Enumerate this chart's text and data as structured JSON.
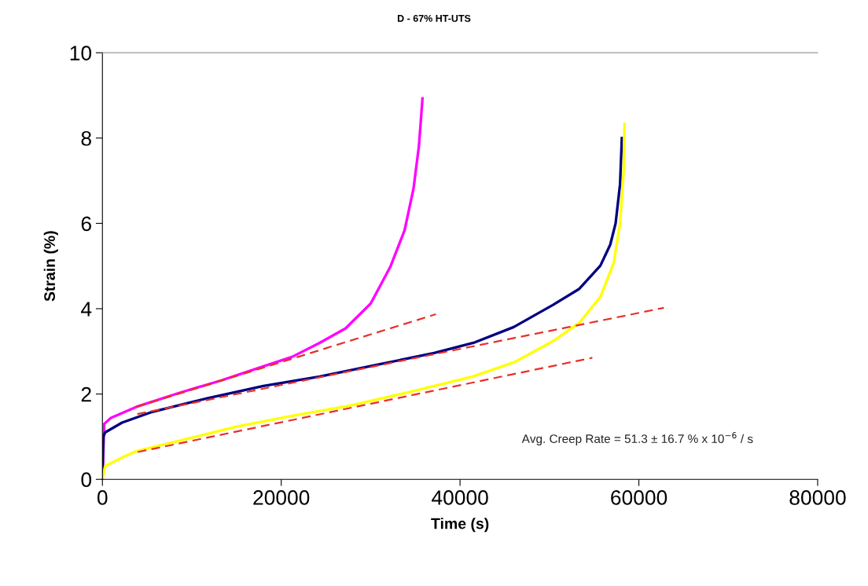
{
  "chart_data": {
    "type": "line",
    "title": "D - 67% HT-UTS",
    "xlabel": "Time (s)",
    "ylabel": "Strain (%)",
    "xlim": [
      0,
      80000
    ],
    "ylim": [
      0,
      10
    ],
    "xticks": [
      0,
      20000,
      40000,
      60000,
      80000
    ],
    "yticks": [
      0,
      2,
      4,
      6,
      8,
      10
    ],
    "grid": false,
    "marker": "none",
    "annotations": [
      "Avg. Creep Rate = 51.3 ± 16.7 % x 10$^{−6}$ / s"
    ],
    "series": [
      {
        "color": "#ff00ff",
        "line_style": "solid",
        "x": [
          0,
          200,
          950,
          3800,
          8500,
          13300,
          18000,
          21200,
          24300,
          27200,
          30000,
          32200,
          33800,
          34800,
          35400,
          35800
        ],
        "values": [
          0,
          1.3,
          1.44,
          1.7,
          2.02,
          2.32,
          2.65,
          2.87,
          3.2,
          3.54,
          4.12,
          4.98,
          5.84,
          6.82,
          7.81,
          8.93
        ]
      },
      {
        "color": "#000080",
        "line_style": "solid",
        "x": [
          0,
          100,
          300,
          2200,
          5400,
          11700,
          18000,
          24300,
          30600,
          37100,
          41500,
          46000,
          50400,
          53300,
          55700,
          56800,
          57400,
          57900,
          58100
        ],
        "values": [
          0,
          1.0,
          1.1,
          1.33,
          1.57,
          1.9,
          2.19,
          2.41,
          2.68,
          2.96,
          3.2,
          3.57,
          4.09,
          4.46,
          5.01,
          5.5,
          6.0,
          6.92,
          8.0
        ]
      },
      {
        "color": "#ffff00",
        "line_style": "solid",
        "x": [
          0,
          300,
          2200,
          3800,
          8500,
          14900,
          21200,
          27500,
          33800,
          41400,
          46000,
          50400,
          53300,
          55700,
          57200,
          57900,
          58300,
          58400
        ],
        "values": [
          0,
          0.31,
          0.51,
          0.66,
          0.9,
          1.23,
          1.49,
          1.72,
          2.02,
          2.41,
          2.74,
          3.24,
          3.66,
          4.28,
          5.08,
          6.0,
          7.22,
          8.33
        ]
      },
      {
        "color": "#e8302a",
        "line_style": "dashed",
        "x": [
          3800,
          37300
        ],
        "values": [
          1.7,
          3.87
        ]
      },
      {
        "color": "#e8302a",
        "line_style": "dashed",
        "x": [
          3900,
          62800
        ],
        "values": [
          1.53,
          4.02
        ]
      },
      {
        "color": "#e8302a",
        "line_style": "dashed",
        "x": [
          3950,
          54800
        ],
        "values": [
          0.64,
          2.85
        ]
      }
    ]
  }
}
